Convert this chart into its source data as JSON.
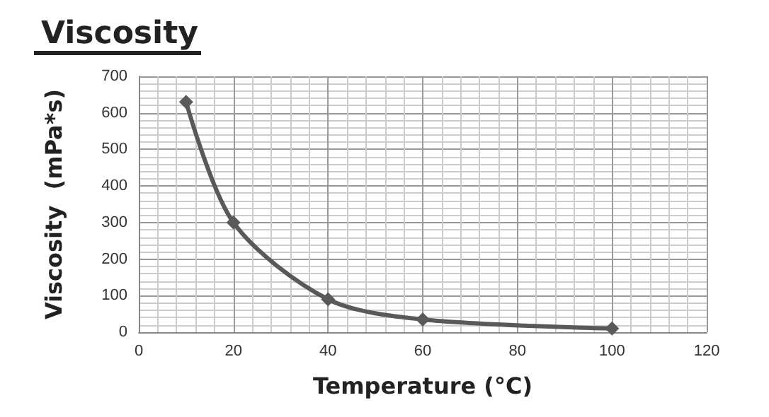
{
  "chart_data": {
    "type": "line",
    "title": "Viscosity",
    "xlabel": "Temperature (°C)",
    "ylabel": "Viscosity  (mPa*s)",
    "x": [
      10,
      20,
      40,
      60,
      100
    ],
    "series": [
      {
        "color": "#595959",
        "values": [
          630,
          300,
          90,
          35,
          10
        ]
      }
    ],
    "xlim": [
      0,
      120
    ],
    "xticks": [
      0,
      20,
      40,
      60,
      80,
      100,
      120
    ],
    "ylim": [
      0,
      700
    ],
    "yticks": [
      0,
      100,
      200,
      300,
      400,
      500,
      600,
      700
    ],
    "grid": true,
    "marker": "diamond",
    "line_style": "solid"
  }
}
